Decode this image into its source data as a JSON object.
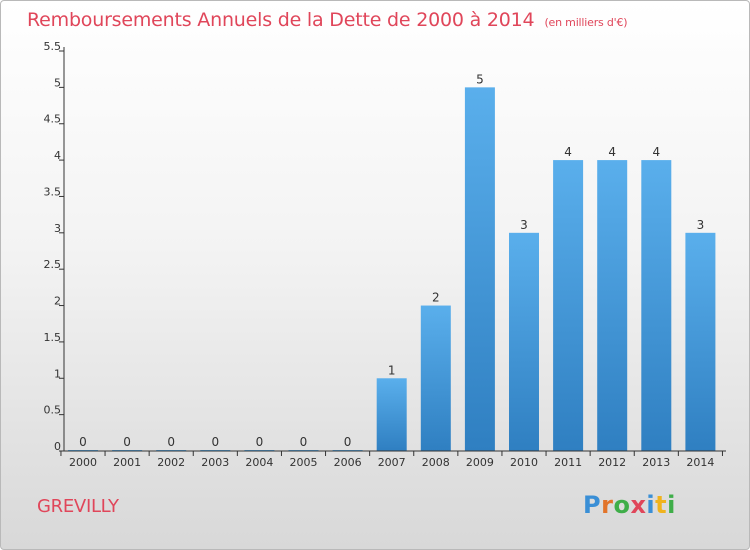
{
  "header": {
    "title": "Remboursements Annuels de la Dette de 2000 à 2014",
    "unit": "(en milliers d'€)"
  },
  "footer": {
    "commune": "GREVILLY",
    "brand_letters": [
      "P",
      "r",
      "o",
      "x",
      "i",
      "t",
      "i"
    ],
    "brand_colors": [
      "#3a8fd6",
      "#e2742a",
      "#3fae49",
      "#e0465a",
      "#3a8fd6",
      "#f0b31d",
      "#3fae49"
    ]
  },
  "colors": {
    "bar_top": "#5aafec",
    "bar_bottom": "#2f7fc1",
    "axis": "#333333",
    "title": "#e0465a"
  },
  "chart_data": {
    "type": "bar",
    "categories": [
      "2000",
      "2001",
      "2002",
      "2003",
      "2004",
      "2005",
      "2006",
      "2007",
      "2008",
      "2009",
      "2010",
      "2011",
      "2012",
      "2013",
      "2014"
    ],
    "values": [
      0,
      0,
      0,
      0,
      0,
      0,
      0,
      1,
      2,
      5,
      3,
      4,
      4,
      4,
      3
    ],
    "data_labels": [
      "0",
      "0",
      "0",
      "0",
      "0",
      "0",
      "0",
      "1",
      "2",
      "5",
      "3",
      "4",
      "4",
      "4",
      "3"
    ],
    "yticks": [
      0,
      0.5,
      1,
      1.5,
      2,
      2.5,
      3,
      3.5,
      4,
      4.5,
      5,
      5.5
    ],
    "ytick_labels": [
      "0",
      "0.5",
      "1",
      "1.5",
      "2",
      "2.5",
      "3",
      "3.5",
      "4",
      "4.5",
      "5",
      "5.5"
    ],
    "ylim": [
      0,
      5.5
    ],
    "grid": false,
    "legend": "none"
  }
}
